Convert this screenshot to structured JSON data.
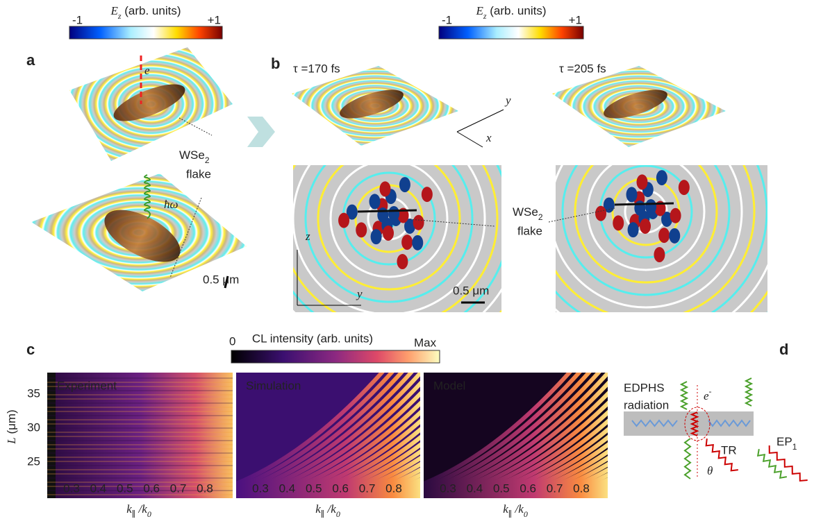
{
  "colorbars": [
    {
      "label": {
        "symbol": "E",
        "sub": "z",
        "text": " (arb. units)"
      },
      "min": "-1",
      "max": "+1"
    },
    {
      "label": {
        "symbol": "E",
        "sub": "z",
        "text": " (arb. units)"
      },
      "min": "-1",
      "max": "+1"
    }
  ],
  "panel_a": {
    "label": "a",
    "electron": "e",
    "flake": {
      "text": "WSe",
      "sub": "2",
      "line2": "flake"
    },
    "photon": "ħω",
    "scale": "0.5 μm"
  },
  "panel_b": {
    "label": "b",
    "snapshots": [
      {
        "time": "τ =170 fs"
      },
      {
        "time": "τ =205 fs"
      }
    ],
    "axes3d": {
      "y": "y",
      "x": "x"
    },
    "axes2d": {
      "z": "z",
      "y": "y"
    },
    "scale": "0.5 μm",
    "flake": {
      "text": "WSe",
      "sub": "2",
      "line2": "flake"
    }
  },
  "panel_c": {
    "label": "c",
    "colorbar": {
      "label": "CL intensity (arb. units)",
      "min": "0",
      "max": "Max"
    },
    "maps": [
      "Experiment",
      "Simulation",
      "Model"
    ],
    "y_label": {
      "symbol": "L",
      "unit": " (μm)"
    },
    "y_ticks": [
      "35",
      "30",
      "25"
    ],
    "x_ticks": [
      "0.3",
      "0.4",
      "0.5",
      "0.6",
      "0.7",
      "0.8"
    ],
    "x_label": {
      "symbol": "k",
      "sub": "∥",
      "rest": " /k",
      "sub2": "0"
    }
  },
  "panel_d": {
    "label": "d",
    "source": [
      "EDPHS",
      "radiation"
    ],
    "electron": {
      "symbol": "e",
      "sup": "-"
    },
    "tr": "TR",
    "angle": "θ",
    "ep": {
      "text": "EP",
      "sub": "1"
    }
  }
}
